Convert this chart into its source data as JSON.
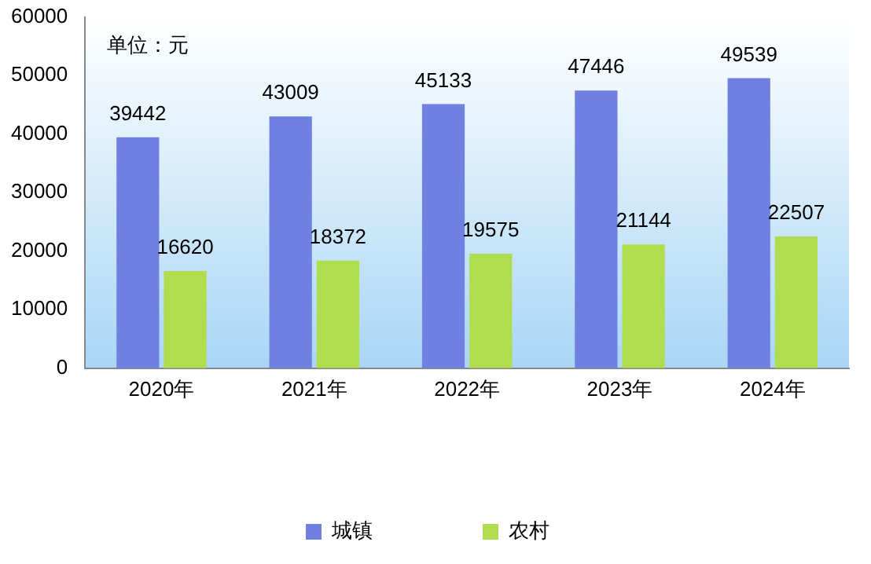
{
  "chart_data": {
    "type": "bar",
    "categories": [
      "2020年",
      "2021年",
      "2022年",
      "2023年",
      "2024年"
    ],
    "series": [
      {
        "name": "城镇",
        "color": "#7080e0",
        "values": [
          39442,
          43009,
          45133,
          47446,
          49539
        ]
      },
      {
        "name": "农村",
        "color": "#b0dc50",
        "values": [
          16620,
          18372,
          19575,
          21144,
          22507
        ]
      }
    ],
    "ylim": [
      0,
      60000
    ],
    "yticks": [
      0,
      10000,
      20000,
      30000,
      40000,
      50000,
      60000
    ],
    "grid": false,
    "legend": "bottom",
    "data_labels": true,
    "annotations": [
      "单位：元"
    ]
  }
}
